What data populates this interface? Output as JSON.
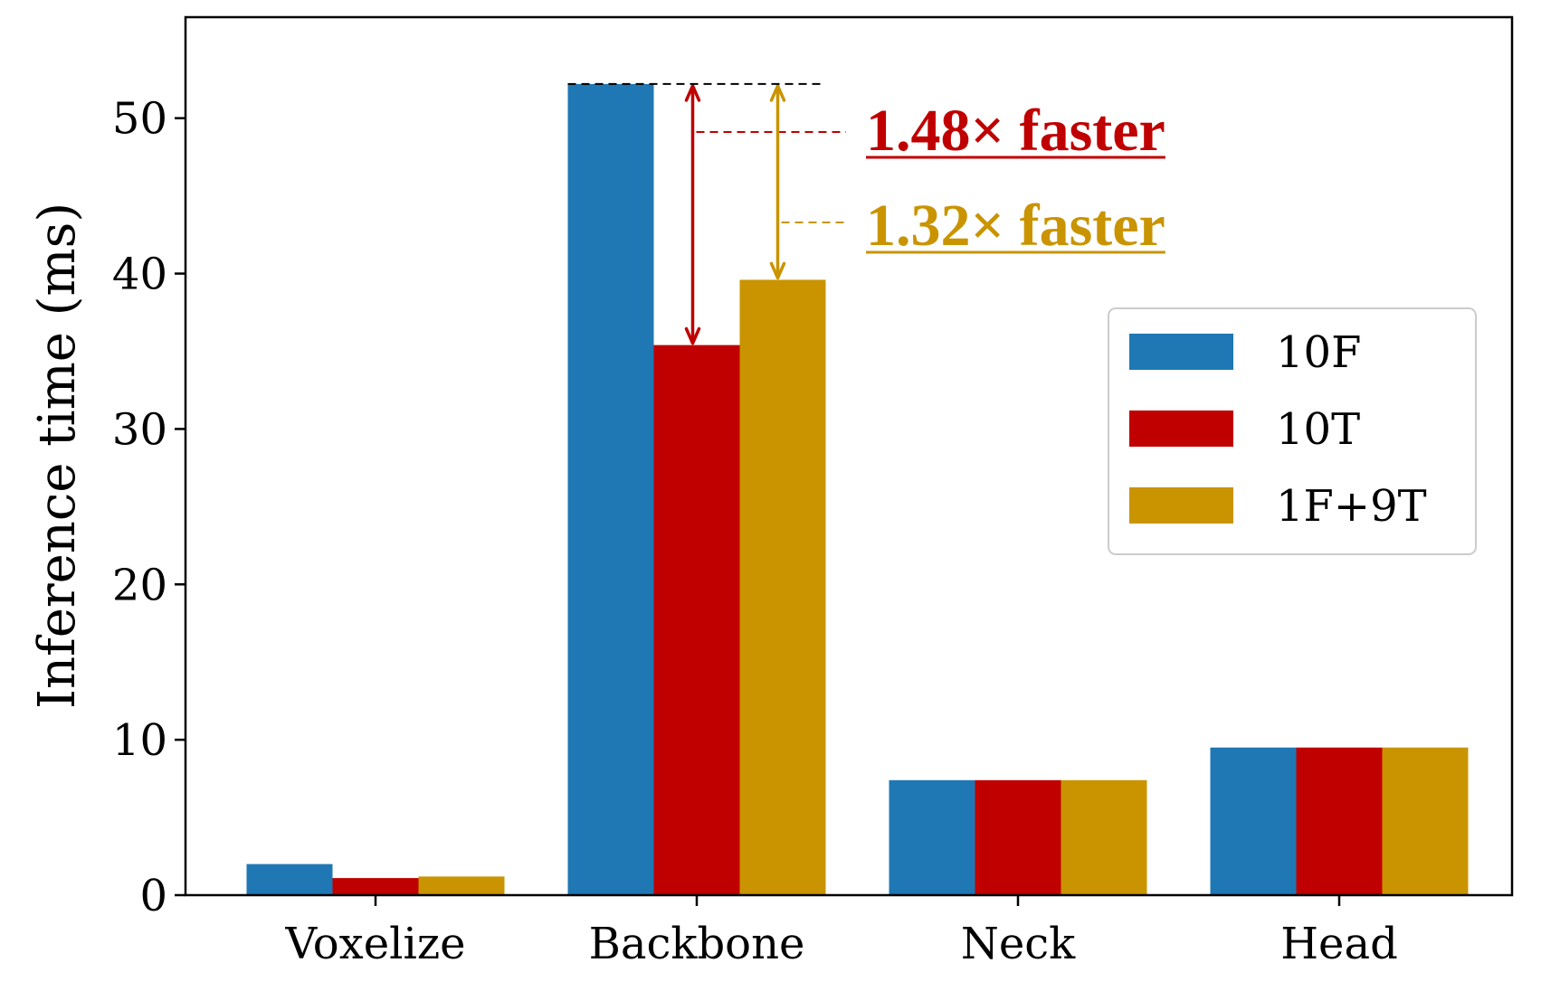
{
  "chart_data": {
    "type": "bar",
    "title": "",
    "xlabel": "",
    "ylabel": "Inference time (ms)",
    "categories": [
      "Voxelize",
      "Backbone",
      "Neck",
      "Head"
    ],
    "series": [
      {
        "name": "10F",
        "color": "#1f77b4",
        "values": [
          2.0,
          52.2,
          7.4,
          9.5
        ]
      },
      {
        "name": "10T",
        "color": "#c00000",
        "values": [
          1.1,
          35.4,
          7.4,
          9.5
        ]
      },
      {
        "name": "1F+9T",
        "color": "#c99400",
        "values": [
          1.2,
          39.6,
          7.4,
          9.5
        ]
      }
    ],
    "ylim": [
      0,
      56.5
    ],
    "yticks": [
      0,
      10,
      20,
      30,
      40,
      50
    ],
    "grid": false,
    "legend_position": "center-right",
    "annotations": [
      {
        "text": "1.48× faster",
        "color": "#c00000",
        "category": "Backbone",
        "from_series": "10F",
        "to_series": "10T",
        "from_value": 52.2,
        "to_value": 35.4
      },
      {
        "text": "1.32× faster",
        "color": "#c99400",
        "category": "Backbone",
        "from_series": "10F",
        "to_series": "1F+9T",
        "from_value": 52.2,
        "to_value": 39.6
      }
    ]
  }
}
